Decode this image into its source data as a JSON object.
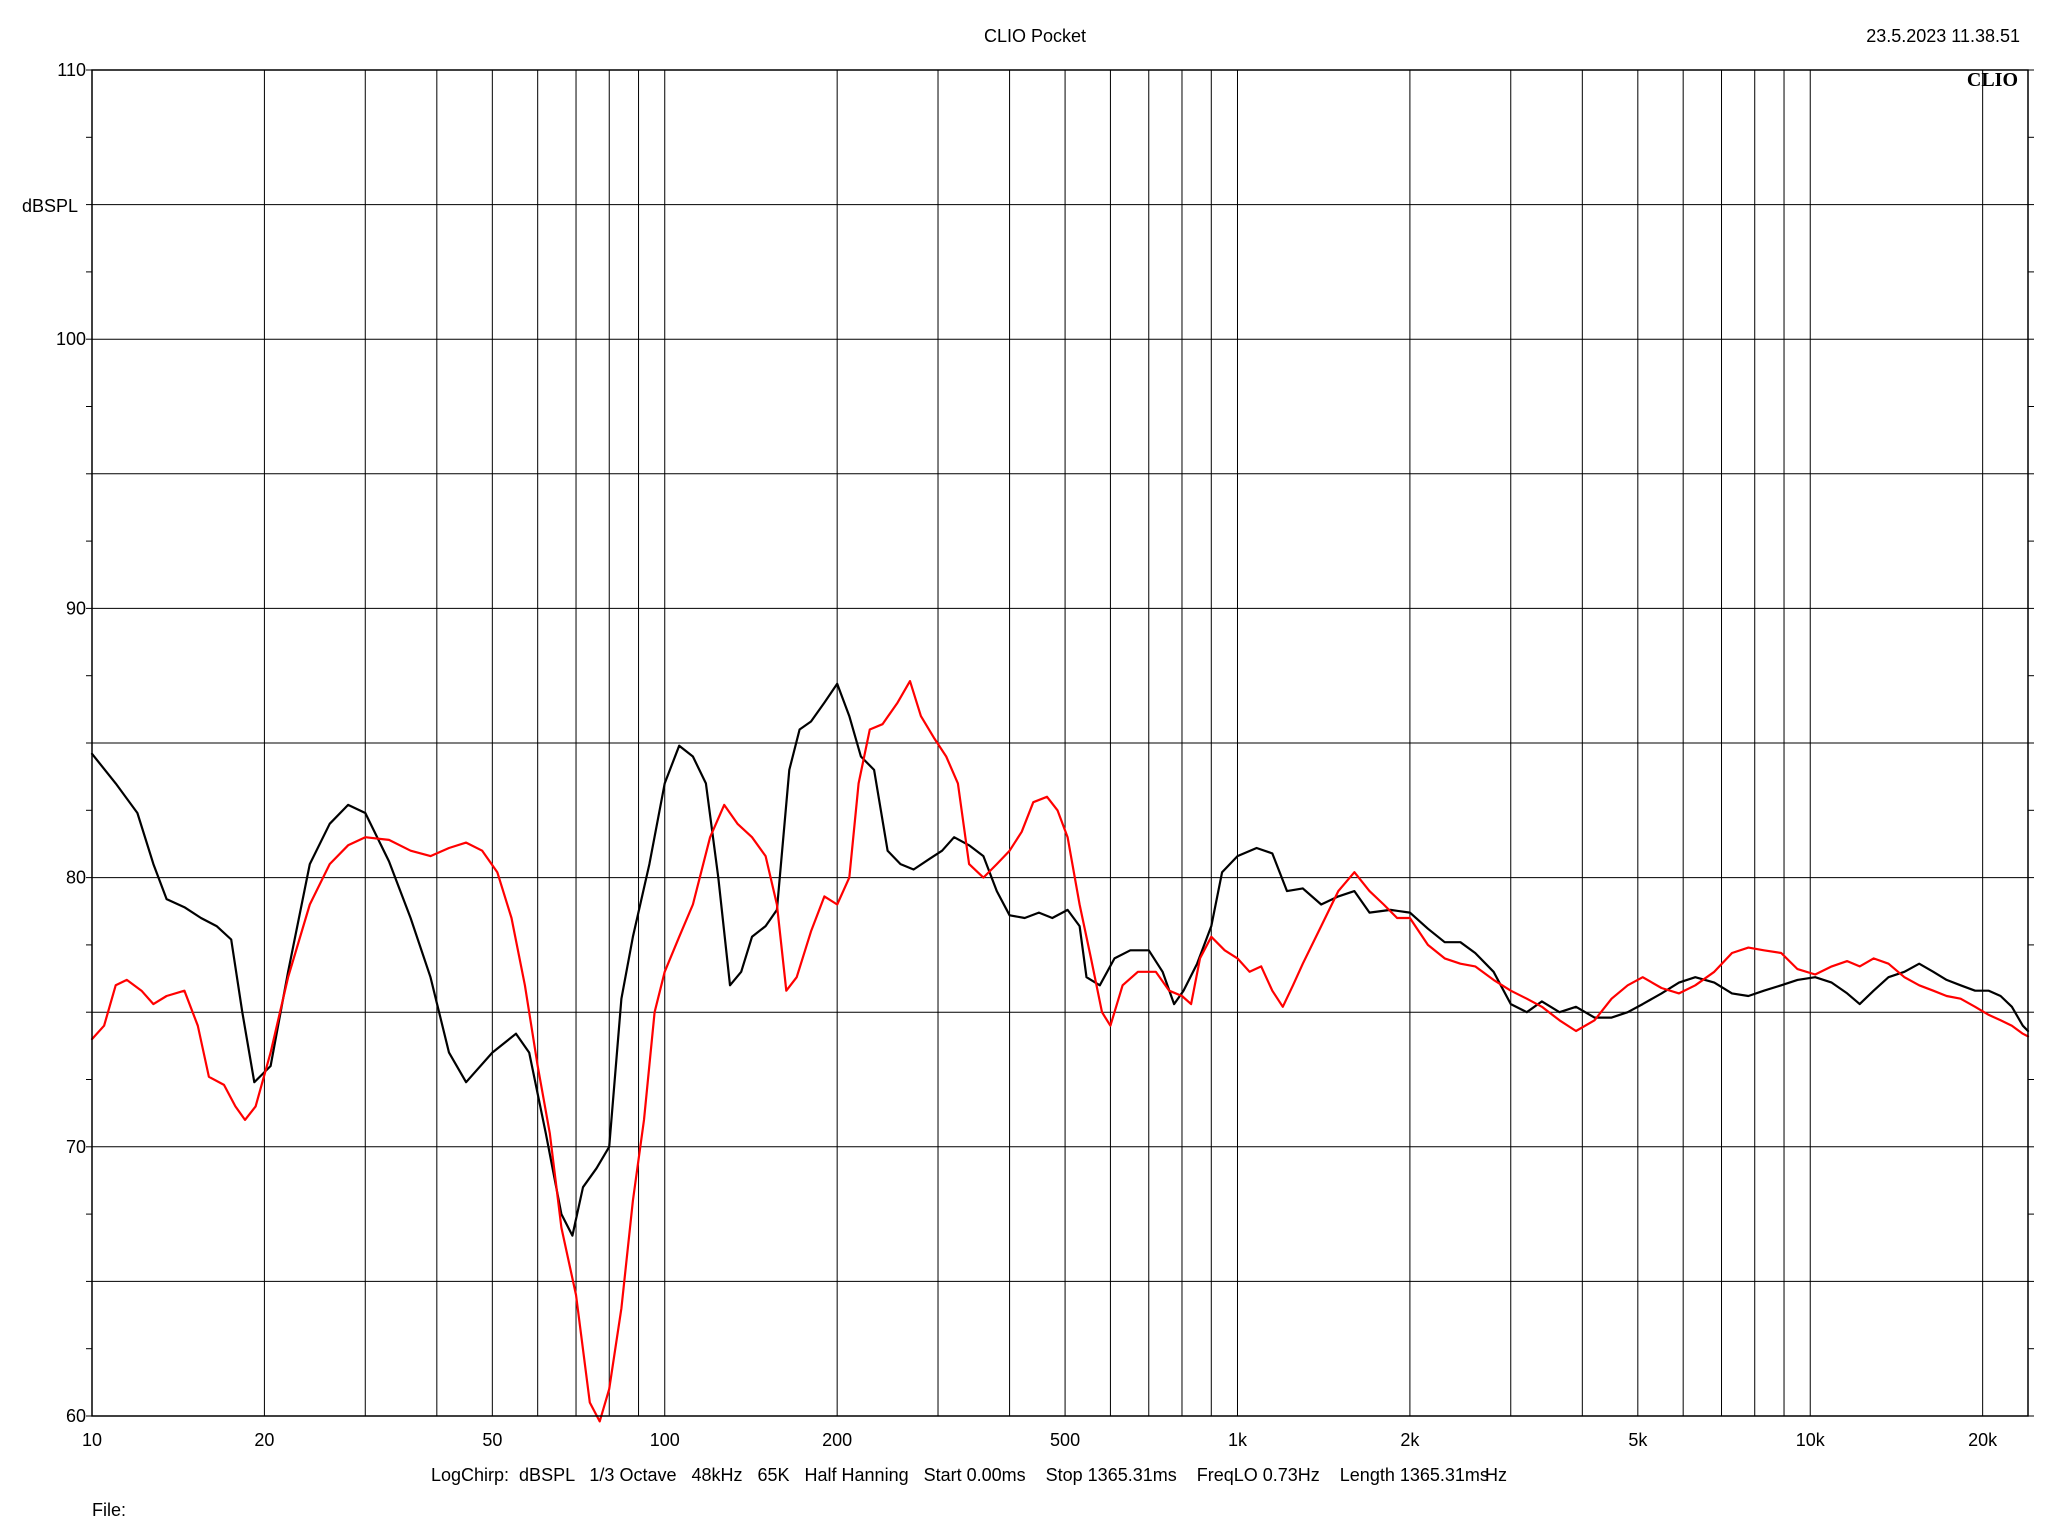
{
  "app": {
    "title": "CLIO Pocket",
    "timestamp": "23.5.2023 11.38.51",
    "brand": "CLIO",
    "info_line": "LogChirp:  dBSPL   1/3 Octave   48kHz   65K   Half Hanning   Start 0.00ms    Stop 1365.31ms    FreqLO 0.73Hz    Length 1365.31ms",
    "file_label": "File:"
  },
  "colors": {
    "background": "#ffffff",
    "grid": "#000000",
    "series_black": "#000000",
    "series_red": "#ff0000"
  },
  "chart_data": {
    "type": "line",
    "xscale": "log",
    "xlim": [
      10,
      24000
    ],
    "ylim": [
      60,
      110
    ],
    "ylabel": "dBSPL",
    "xunit": "Hz",
    "grid": true,
    "y_ticks": [
      {
        "value": 110,
        "label": "110"
      },
      {
        "value": 100,
        "label": "100"
      },
      {
        "value": 90,
        "label": "90"
      },
      {
        "value": 80,
        "label": "80"
      },
      {
        "value": 70,
        "label": "70"
      },
      {
        "value": 60,
        "label": "60"
      }
    ],
    "y_minor_ticks": [
      105,
      95,
      85,
      75,
      65
    ],
    "x_ticks": [
      {
        "value": 10,
        "label": "10"
      },
      {
        "value": 20,
        "label": "20"
      },
      {
        "value": 50,
        "label": "50"
      },
      {
        "value": 100,
        "label": "100"
      },
      {
        "value": 200,
        "label": "200"
      },
      {
        "value": 500,
        "label": "500"
      },
      {
        "value": 1000,
        "label": "1k"
      },
      {
        "value": 2000,
        "label": "2k"
      },
      {
        "value": 5000,
        "label": "5k"
      },
      {
        "value": 10000,
        "label": "10k"
      },
      {
        "value": 20000,
        "label": "20k"
      }
    ],
    "x_grid": [
      20,
      30,
      40,
      50,
      60,
      70,
      80,
      90,
      100,
      200,
      300,
      400,
      500,
      600,
      700,
      800,
      900,
      1000,
      2000,
      3000,
      4000,
      5000,
      6000,
      7000,
      8000,
      9000,
      10000,
      20000
    ],
    "series": [
      {
        "color": "#000000",
        "points": [
          [
            10,
            84.6
          ],
          [
            11,
            83.5
          ],
          [
            12,
            82.4
          ],
          [
            12.8,
            80.5
          ],
          [
            13.5,
            79.2
          ],
          [
            14.5,
            78.9
          ],
          [
            15.5,
            78.5
          ],
          [
            16.5,
            78.2
          ],
          [
            17.5,
            77.7
          ],
          [
            18.3,
            75.0
          ],
          [
            19.2,
            72.4
          ],
          [
            20.5,
            73.0
          ],
          [
            22,
            76.5
          ],
          [
            24,
            80.5
          ],
          [
            26,
            82.0
          ],
          [
            28,
            82.7
          ],
          [
            30,
            82.4
          ],
          [
            33,
            80.6
          ],
          [
            36,
            78.5
          ],
          [
            39,
            76.3
          ],
          [
            42,
            73.5
          ],
          [
            45,
            72.4
          ],
          [
            50,
            73.5
          ],
          [
            55,
            74.2
          ],
          [
            58,
            73.5
          ],
          [
            62,
            70.5
          ],
          [
            66,
            67.5
          ],
          [
            69,
            66.7
          ],
          [
            72,
            68.5
          ],
          [
            76,
            69.2
          ],
          [
            80,
            70.0
          ],
          [
            84,
            75.5
          ],
          [
            88,
            77.8
          ],
          [
            94,
            80.5
          ],
          [
            100,
            83.5
          ],
          [
            106,
            84.9
          ],
          [
            112,
            84.5
          ],
          [
            118,
            83.5
          ],
          [
            124,
            80.0
          ],
          [
            130,
            76.0
          ],
          [
            136,
            76.5
          ],
          [
            142,
            77.8
          ],
          [
            150,
            78.2
          ],
          [
            157,
            78.8
          ],
          [
            165,
            84.0
          ],
          [
            172,
            85.5
          ],
          [
            180,
            85.8
          ],
          [
            190,
            86.5
          ],
          [
            200,
            87.2
          ],
          [
            210,
            86.0
          ],
          [
            220,
            84.5
          ],
          [
            232,
            84.0
          ],
          [
            245,
            81.0
          ],
          [
            258,
            80.5
          ],
          [
            272,
            80.3
          ],
          [
            290,
            80.7
          ],
          [
            305,
            81.0
          ],
          [
            320,
            81.5
          ],
          [
            340,
            81.2
          ],
          [
            360,
            80.8
          ],
          [
            380,
            79.5
          ],
          [
            400,
            78.6
          ],
          [
            425,
            78.5
          ],
          [
            450,
            78.7
          ],
          [
            475,
            78.5
          ],
          [
            505,
            78.8
          ],
          [
            530,
            78.2
          ],
          [
            545,
            76.3
          ],
          [
            575,
            76.0
          ],
          [
            610,
            77.0
          ],
          [
            650,
            77.3
          ],
          [
            700,
            77.3
          ],
          [
            740,
            76.5
          ],
          [
            775,
            75.3
          ],
          [
            805,
            75.8
          ],
          [
            850,
            76.8
          ],
          [
            900,
            78.2
          ],
          [
            940,
            80.2
          ],
          [
            1000,
            80.8
          ],
          [
            1080,
            81.1
          ],
          [
            1150,
            80.9
          ],
          [
            1220,
            79.5
          ],
          [
            1300,
            79.6
          ],
          [
            1400,
            79.0
          ],
          [
            1500,
            79.3
          ],
          [
            1600,
            79.5
          ],
          [
            1700,
            78.7
          ],
          [
            1850,
            78.8
          ],
          [
            2000,
            78.7
          ],
          [
            2150,
            78.1
          ],
          [
            2300,
            77.6
          ],
          [
            2450,
            77.6
          ],
          [
            2600,
            77.2
          ],
          [
            2800,
            76.5
          ],
          [
            3000,
            75.3
          ],
          [
            3200,
            75.0
          ],
          [
            3400,
            75.4
          ],
          [
            3650,
            75.0
          ],
          [
            3900,
            75.2
          ],
          [
            4200,
            74.8
          ],
          [
            4500,
            74.8
          ],
          [
            4800,
            75.0
          ],
          [
            5100,
            75.3
          ],
          [
            5500,
            75.7
          ],
          [
            5900,
            76.1
          ],
          [
            6300,
            76.3
          ],
          [
            6800,
            76.1
          ],
          [
            7300,
            75.7
          ],
          [
            7800,
            75.6
          ],
          [
            8300,
            75.8
          ],
          [
            8900,
            76.0
          ],
          [
            9500,
            76.2
          ],
          [
            10200,
            76.3
          ],
          [
            10900,
            76.1
          ],
          [
            11600,
            75.7
          ],
          [
            12200,
            75.3
          ],
          [
            12900,
            75.8
          ],
          [
            13700,
            76.3
          ],
          [
            14600,
            76.5
          ],
          [
            15500,
            76.8
          ],
          [
            16400,
            76.5
          ],
          [
            17300,
            76.2
          ],
          [
            18300,
            76.0
          ],
          [
            19400,
            75.8
          ],
          [
            20500,
            75.8
          ],
          [
            21500,
            75.6
          ],
          [
            22500,
            75.2
          ],
          [
            23500,
            74.5
          ],
          [
            24000,
            74.3
          ]
        ]
      },
      {
        "color": "#ff0000",
        "points": [
          [
            10,
            74.0
          ],
          [
            10.5,
            74.5
          ],
          [
            11,
            76.0
          ],
          [
            11.5,
            76.2
          ],
          [
            12.2,
            75.8
          ],
          [
            12.8,
            75.3
          ],
          [
            13.5,
            75.6
          ],
          [
            14.5,
            75.8
          ],
          [
            15.3,
            74.5
          ],
          [
            16.0,
            72.6
          ],
          [
            17.0,
            72.3
          ],
          [
            17.8,
            71.5
          ],
          [
            18.5,
            71.0
          ],
          [
            19.3,
            71.5
          ],
          [
            20.5,
            73.5
          ],
          [
            22,
            76.3
          ],
          [
            24,
            79.0
          ],
          [
            26,
            80.5
          ],
          [
            28,
            81.2
          ],
          [
            30,
            81.5
          ],
          [
            33,
            81.4
          ],
          [
            36,
            81.0
          ],
          [
            39,
            80.8
          ],
          [
            42,
            81.1
          ],
          [
            45,
            81.3
          ],
          [
            48,
            81.0
          ],
          [
            51,
            80.2
          ],
          [
            54,
            78.5
          ],
          [
            57,
            76.0
          ],
          [
            60,
            73.0
          ],
          [
            63,
            70.5
          ],
          [
            66,
            67.0
          ],
          [
            70,
            64.5
          ],
          [
            74,
            60.5
          ],
          [
            77,
            59.8
          ],
          [
            80,
            61.0
          ],
          [
            84,
            64.0
          ],
          [
            88,
            68.0
          ],
          [
            92,
            71.0
          ],
          [
            96,
            75.0
          ],
          [
            100,
            76.5
          ],
          [
            106,
            77.8
          ],
          [
            112,
            79.0
          ],
          [
            120,
            81.5
          ],
          [
            127,
            82.7
          ],
          [
            134,
            82.0
          ],
          [
            142,
            81.5
          ],
          [
            150,
            80.8
          ],
          [
            157,
            79.0
          ],
          [
            163,
            75.8
          ],
          [
            170,
            76.3
          ],
          [
            180,
            78.0
          ],
          [
            190,
            79.3
          ],
          [
            200,
            79.0
          ],
          [
            210,
            80.0
          ],
          [
            218,
            83.5
          ],
          [
            228,
            85.5
          ],
          [
            240,
            85.7
          ],
          [
            255,
            86.5
          ],
          [
            268,
            87.3
          ],
          [
            280,
            86.0
          ],
          [
            295,
            85.2
          ],
          [
            310,
            84.5
          ],
          [
            325,
            83.5
          ],
          [
            340,
            80.5
          ],
          [
            360,
            80.0
          ],
          [
            380,
            80.5
          ],
          [
            400,
            81.0
          ],
          [
            420,
            81.7
          ],
          [
            440,
            82.8
          ],
          [
            465,
            83.0
          ],
          [
            485,
            82.5
          ],
          [
            505,
            81.5
          ],
          [
            530,
            79.0
          ],
          [
            555,
            77.0
          ],
          [
            580,
            75.0
          ],
          [
            600,
            74.5
          ],
          [
            630,
            76.0
          ],
          [
            670,
            76.5
          ],
          [
            720,
            76.5
          ],
          [
            760,
            75.8
          ],
          [
            800,
            75.6
          ],
          [
            830,
            75.3
          ],
          [
            860,
            77.0
          ],
          [
            900,
            77.8
          ],
          [
            950,
            77.3
          ],
          [
            1000,
            77.0
          ],
          [
            1050,
            76.5
          ],
          [
            1100,
            76.7
          ],
          [
            1150,
            75.8
          ],
          [
            1200,
            75.2
          ],
          [
            1250,
            76.0
          ],
          [
            1300,
            76.8
          ],
          [
            1400,
            78.2
          ],
          [
            1500,
            79.5
          ],
          [
            1600,
            80.2
          ],
          [
            1700,
            79.5
          ],
          [
            1800,
            79.0
          ],
          [
            1900,
            78.5
          ],
          [
            2000,
            78.5
          ],
          [
            2150,
            77.5
          ],
          [
            2300,
            77.0
          ],
          [
            2450,
            76.8
          ],
          [
            2600,
            76.7
          ],
          [
            2800,
            76.2
          ],
          [
            3000,
            75.8
          ],
          [
            3200,
            75.5
          ],
          [
            3400,
            75.2
          ],
          [
            3650,
            74.7
          ],
          [
            3900,
            74.3
          ],
          [
            4200,
            74.7
          ],
          [
            4500,
            75.5
          ],
          [
            4800,
            76.0
          ],
          [
            5100,
            76.3
          ],
          [
            5500,
            75.9
          ],
          [
            5900,
            75.7
          ],
          [
            6300,
            76.0
          ],
          [
            6800,
            76.5
          ],
          [
            7300,
            77.2
          ],
          [
            7800,
            77.4
          ],
          [
            8300,
            77.3
          ],
          [
            8900,
            77.2
          ],
          [
            9500,
            76.6
          ],
          [
            10200,
            76.4
          ],
          [
            10900,
            76.7
          ],
          [
            11600,
            76.9
          ],
          [
            12200,
            76.7
          ],
          [
            12900,
            77.0
          ],
          [
            13700,
            76.8
          ],
          [
            14600,
            76.3
          ],
          [
            15500,
            76.0
          ],
          [
            16400,
            75.8
          ],
          [
            17300,
            75.6
          ],
          [
            18300,
            75.5
          ],
          [
            19400,
            75.2
          ],
          [
            20500,
            74.9
          ],
          [
            21500,
            74.7
          ],
          [
            22500,
            74.5
          ],
          [
            23500,
            74.2
          ],
          [
            24000,
            74.1
          ]
        ]
      }
    ]
  }
}
